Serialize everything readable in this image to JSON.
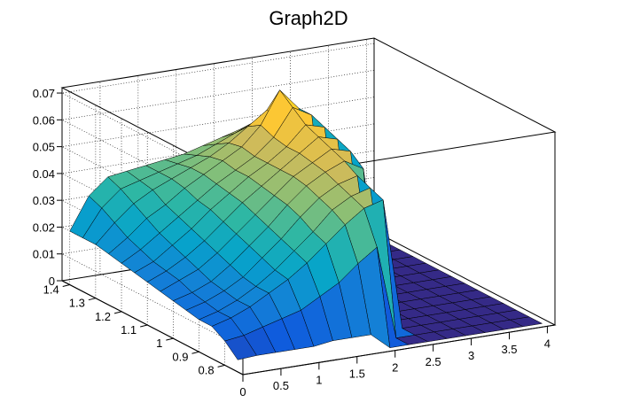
{
  "chart_data": {
    "type": "surface",
    "title": "Graph2D",
    "xlabel": "",
    "ylabel": "",
    "zlabel": "",
    "x_ticks": [
      "0",
      "0.5",
      "1",
      "1.5",
      "2",
      "2.5",
      "3",
      "3.5",
      "4"
    ],
    "y_ticks": [
      "0.8",
      "0.9",
      "1",
      "1.1",
      "1.2",
      "1.3",
      "1.4"
    ],
    "z_ticks": [
      "0",
      "0.01",
      "0.02",
      "0.03",
      "0.04",
      "0.05",
      "0.06",
      "0.07"
    ],
    "xlim": [
      0,
      4.1
    ],
    "ylim": [
      0.73,
      1.43
    ],
    "zlim": [
      0,
      0.072
    ],
    "grid": true,
    "palette": "kBird",
    "colors": [
      "#352a87",
      "#0f5cdd",
      "#1481d6",
      "#06a4ca",
      "#2eb7a4",
      "#87bf77",
      "#d1bb59",
      "#fec832",
      "#f9fb0e"
    ],
    "surface_description_note_free": true,
    "grid_x": [
      0,
      0.25,
      0.5,
      0.75,
      1,
      1.25,
      1.5,
      1.75,
      2,
      2.25,
      2.5,
      2.75,
      3,
      3.25,
      3.5,
      3.75,
      4
    ],
    "grid_y": [
      0.75,
      0.8,
      0.85,
      0.9,
      0.95,
      1.0,
      1.05,
      1.1,
      1.15,
      1.2,
      1.25,
      1.3,
      1.35,
      1.4
    ],
    "z": [
      [
        0.0045,
        0.005,
        0.005,
        0.005,
        0.005,
        0.006,
        0.006,
        0.006,
        0,
        0,
        0,
        0,
        0,
        0,
        0,
        0,
        0
      ],
      [
        0.009,
        0.01,
        0.012,
        0.014,
        0.016,
        0.02,
        0.024,
        0.03,
        0.035,
        0,
        0,
        0,
        0,
        0,
        0,
        0,
        0
      ],
      [
        0.012,
        0.014,
        0.017,
        0.021,
        0.025,
        0.03,
        0.036,
        0.042,
        0.047,
        0.049,
        0,
        0,
        0,
        0,
        0,
        0,
        0
      ],
      [
        0.012,
        0.014,
        0.017,
        0.021,
        0.026,
        0.032,
        0.038,
        0.045,
        0.049,
        0.051,
        0,
        0,
        0,
        0,
        0,
        0,
        0
      ],
      [
        0.013,
        0.015,
        0.018,
        0.022,
        0.028,
        0.034,
        0.041,
        0.047,
        0.051,
        0.053,
        0,
        0,
        0,
        0,
        0,
        0,
        0
      ],
      [
        0.014,
        0.016,
        0.019,
        0.024,
        0.03,
        0.036,
        0.043,
        0.049,
        0.053,
        0.056,
        0.052,
        0,
        0,
        0,
        0,
        0,
        0
      ],
      [
        0.015,
        0.018,
        0.021,
        0.026,
        0.032,
        0.038,
        0.044,
        0.05,
        0.054,
        0.058,
        0.056,
        0,
        0,
        0,
        0,
        0,
        0
      ],
      [
        0.016,
        0.019,
        0.023,
        0.028,
        0.034,
        0.04,
        0.045,
        0.05,
        0.055,
        0.06,
        0.058,
        0,
        0,
        0,
        0,
        0,
        0
      ],
      [
        0.017,
        0.02,
        0.025,
        0.03,
        0.036,
        0.041,
        0.046,
        0.05,
        0.055,
        0.062,
        0.06,
        0,
        0,
        0,
        0,
        0,
        0
      ],
      [
        0.018,
        0.022,
        0.027,
        0.032,
        0.037,
        0.042,
        0.046,
        0.05,
        0.056,
        0.066,
        0.062,
        0,
        0,
        0,
        0,
        0,
        0
      ],
      [
        0.019,
        0.024,
        0.03,
        0.034,
        0.039,
        0.043,
        0.047,
        0.051,
        0.058,
        0.07,
        0.062,
        0,
        0,
        0,
        0,
        0,
        0
      ],
      [
        0.02,
        0.027,
        0.033,
        0.037,
        0.04,
        0.043,
        0.046,
        0.05,
        0.055,
        0.06,
        0.055,
        0,
        0,
        0,
        0,
        0,
        0
      ],
      [
        0.02,
        0.03,
        0.036,
        0.038,
        0.04,
        0.042,
        0.044,
        0.047,
        0.05,
        0.053,
        0.05,
        0,
        0,
        0,
        0,
        0,
        0
      ],
      [
        0.02,
        0.032,
        0.038,
        0.039,
        0.04,
        0.041,
        0.042,
        0.044,
        0.046,
        0.048,
        0.045,
        0,
        0,
        0,
        0,
        0,
        0
      ]
    ]
  }
}
